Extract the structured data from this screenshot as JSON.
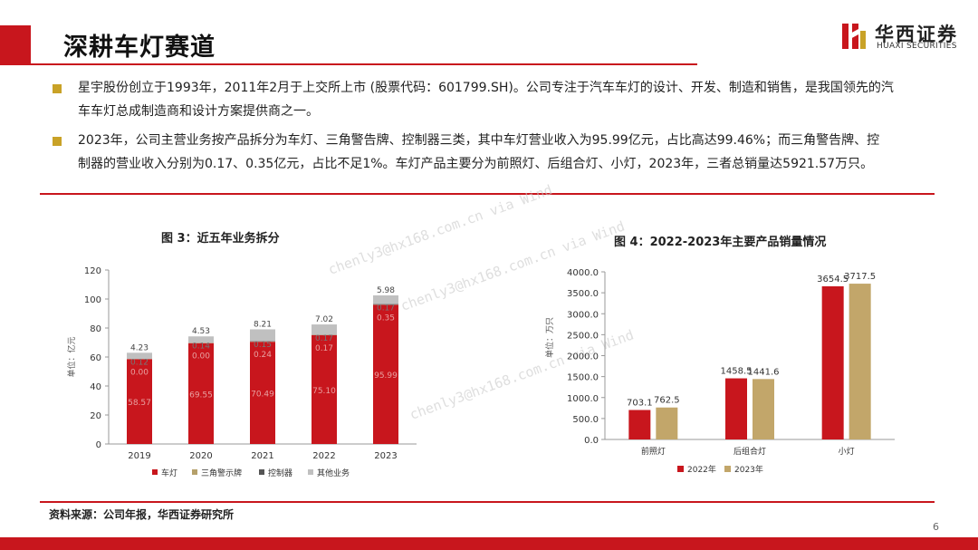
{
  "header": {
    "title": "深耕车灯赛道"
  },
  "logo": {
    "cn": "华西证券",
    "en": "HUAXI SECURITIES"
  },
  "bullets": [
    {
      "line1": "星宇股份创立于1993年，2011年2月于上交所上市 (股票代码：601799.SH)。公司专注于汽车车灯的设计、开发、制造和销售，是我国领先的汽",
      "line2": "车车灯总成制造商和设计方案提供商之一。"
    },
    {
      "line1": "2023年，公司主营业务按产品拆分为车灯、三角警告牌、控制器三类，其中车灯营业收入为95.99亿元，占比高达99.46%；而三角警告牌、控",
      "line2": "制器的营业收入分别为0.17、0.35亿元，占比不足1%。车灯产品主要分为前照灯、后组合灯、小灯，2023年，三者总销量达5921.57万只。"
    }
  ],
  "watermark": [
    "chenly3@hx168.com.cn via Wind",
    "chenly3@hx168.com.cn via Wind",
    "chenly3@hx168.com.cn via Wind"
  ],
  "source": "资料来源：公司年报，华西证券研究所",
  "page_number": "6",
  "colors": {
    "brand_red": "#c8161d",
    "car_light": "#c8161d",
    "triangle": "#b5a06a",
    "controller": "#555555",
    "other": "#c0c0c0",
    "gold": "#c2a66a"
  },
  "chart_data": [
    {
      "type": "bar",
      "stacked": true,
      "title": "图 3：近五年业务拆分",
      "ylabel": "单位：亿元",
      "ylim": [
        0,
        120
      ],
      "yticks": [
        "0",
        "20",
        "40",
        "60",
        "80",
        "100",
        "120"
      ],
      "categories": [
        "2019",
        "2020",
        "2021",
        "2022",
        "2023"
      ],
      "series": [
        {
          "name": "车灯",
          "values": [
            58.57,
            69.55,
            70.49,
            75.1,
            95.99
          ],
          "labels": [
            "58.57",
            "69.55",
            "70.49",
            "75.10",
            "95.99"
          ]
        },
        {
          "name": "三角警示牌",
          "values": [
            0.12,
            0.14,
            0.15,
            0.17,
            0.17
          ],
          "labels": [
            "0.12",
            "0.14",
            "0.15",
            "0.17",
            "0.17"
          ]
        },
        {
          "name": "控制器",
          "values": [
            0.0,
            0.0,
            0.24,
            0.17,
            0.35
          ],
          "labels": [
            "0.00",
            "0.00",
            "0.24",
            "0.17",
            "0.35"
          ]
        },
        {
          "name": "其他业务",
          "values": [
            4.23,
            4.53,
            8.21,
            7.02,
            5.98
          ],
          "labels": [
            "4.23",
            "4.53",
            "8.21",
            "7.02",
            "5.98"
          ]
        }
      ],
      "legend_position": "bottom",
      "grid": false
    },
    {
      "type": "bar",
      "title": "图 4：2022-2023年主要产品销量情况",
      "ylabel": "单位：万只",
      "ylim": [
        0,
        4000
      ],
      "yticks": [
        "0.0",
        "500.0",
        "1000.0",
        "1500.0",
        "2000.0",
        "2500.0",
        "3000.0",
        "3500.0",
        "4000.0"
      ],
      "categories": [
        "前照灯",
        "后组合灯",
        "小灯"
      ],
      "series": [
        {
          "name": "2022年",
          "values": [
            703.1,
            1458.5,
            3654.5
          ],
          "labels": [
            "703.1",
            "1458.5",
            "3654.5"
          ]
        },
        {
          "name": "2023年",
          "values": [
            762.5,
            1441.6,
            3717.5
          ],
          "labels": [
            "762.5",
            "1441.6",
            "3717.5"
          ]
        }
      ],
      "legend_position": "bottom",
      "grid": false
    }
  ]
}
